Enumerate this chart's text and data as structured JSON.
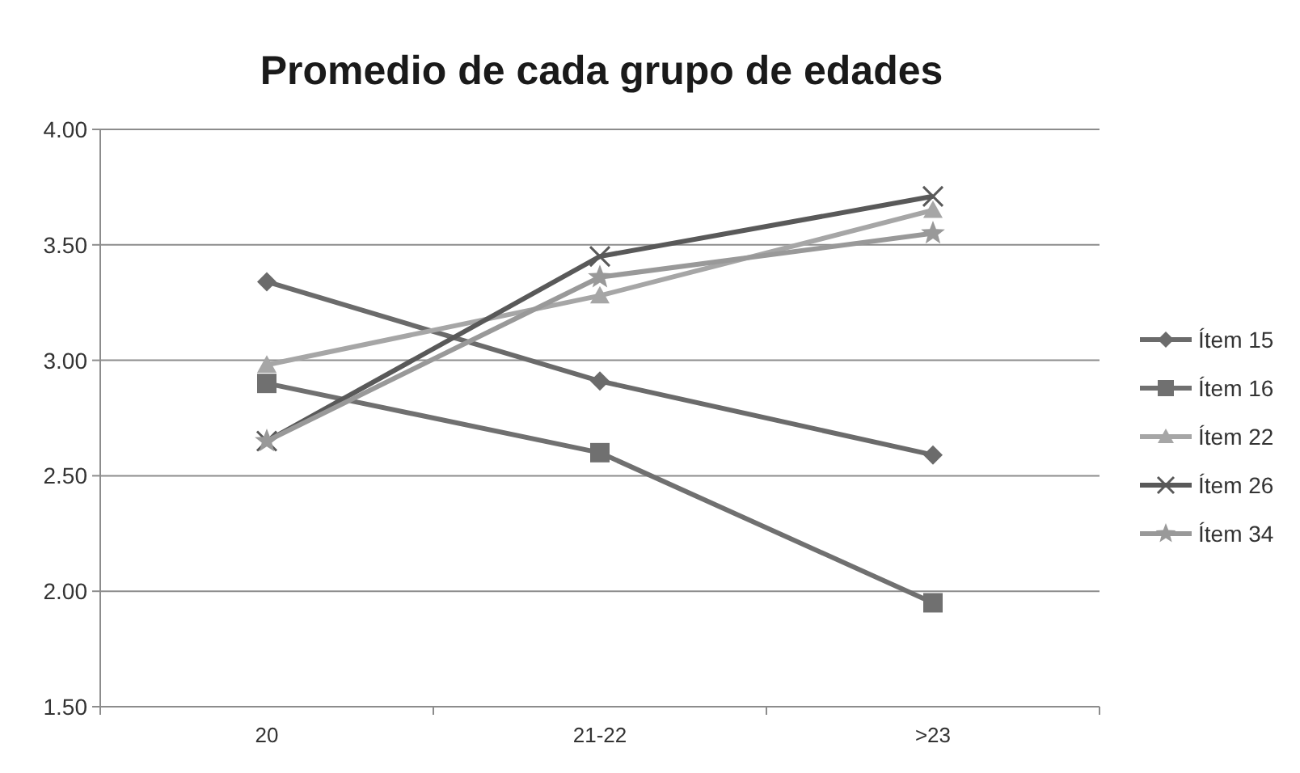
{
  "chart_data": {
    "type": "line",
    "title": "Promedio de cada grupo de edades",
    "categories": [
      "20",
      "21-22",
      ">23"
    ],
    "series": [
      {
        "name": "Ítem 15",
        "color": "#6b6b6b",
        "marker": "diamond",
        "values": [
          3.34,
          2.91,
          2.59
        ]
      },
      {
        "name": "Ítem 16",
        "color": "#707070",
        "marker": "square",
        "values": [
          2.9,
          2.6,
          1.95
        ]
      },
      {
        "name": "Ítem 22",
        "color": "#a6a6a6",
        "marker": "triangle",
        "values": [
          2.98,
          3.28,
          3.65
        ]
      },
      {
        "name": "Ítem 26",
        "color": "#595959",
        "marker": "cross",
        "values": [
          2.65,
          3.45,
          3.71
        ]
      },
      {
        "name": "Ítem 34",
        "color": "#999999",
        "marker": "star",
        "values": [
          2.65,
          3.36,
          3.55
        ]
      }
    ],
    "ylim": [
      1.5,
      4
    ],
    "yticks": [
      {
        "value": 1.5,
        "label": "1.50"
      },
      {
        "value": 2,
        "label": "2.00"
      },
      {
        "value": 2.5,
        "label": "2.50"
      },
      {
        "value": 3,
        "label": "3.00"
      },
      {
        "value": 3.5,
        "label": "3.50"
      },
      {
        "value": 4,
        "label": "4.00"
      }
    ],
    "grid": "y",
    "legend": "right"
  }
}
